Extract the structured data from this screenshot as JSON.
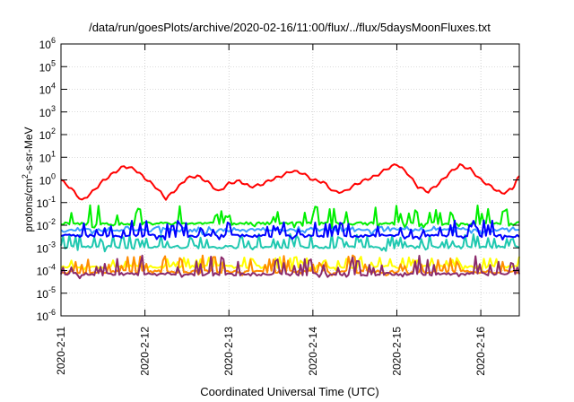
{
  "chart_data": {
    "type": "line",
    "title": "/data/run/goesPlots/archive/2020-02-16/11:00/flux/../flux/5daysMoonFluxes.txt",
    "xlabel": "Coordinated Universal Time (UTC)",
    "ylabel": "protons/cm2-s-sr-MeV",
    "ylabel_parts": {
      "base": "protons/cm",
      "sup": "2",
      "rest": "-s-sr-MeV"
    },
    "y_scale": "log",
    "ylim": [
      1e-06,
      1000000.0
    ],
    "y_ticks": [
      {
        "exp": -6,
        "label_base": "10",
        "label_exp": "-6"
      },
      {
        "exp": -5,
        "label_base": "10",
        "label_exp": "-5"
      },
      {
        "exp": -4,
        "label_base": "10",
        "label_exp": "-4"
      },
      {
        "exp": -3,
        "label_base": "10",
        "label_exp": "-3"
      },
      {
        "exp": -2,
        "label_base": "10",
        "label_exp": "-2"
      },
      {
        "exp": -1,
        "label_base": "10",
        "label_exp": "-1"
      },
      {
        "exp": 0,
        "label_base": "10",
        "label_exp": "0"
      },
      {
        "exp": 1,
        "label_base": "10",
        "label_exp": "1"
      },
      {
        "exp": 2,
        "label_base": "10",
        "label_exp": "2"
      },
      {
        "exp": 3,
        "label_base": "10",
        "label_exp": "3"
      },
      {
        "exp": 4,
        "label_base": "10",
        "label_exp": "4"
      },
      {
        "exp": 5,
        "label_base": "10",
        "label_exp": "5"
      },
      {
        "exp": 6,
        "label_base": "10",
        "label_exp": "6"
      }
    ],
    "xlim": [
      "2020-02-11T00:00",
      "2020-02-16T11:00"
    ],
    "x_ticks": [
      "2020-2-11",
      "2020-2-12",
      "2020-2-13",
      "2020-2-14",
      "2020-2-15",
      "2020-2-16"
    ],
    "grid": true,
    "series": [
      {
        "color": "#ff0000",
        "x": [
          "2020-02-11T00:00",
          "2020-02-11T03:00",
          "2020-02-11T06:00",
          "2020-02-11T09:00",
          "2020-02-11T12:00",
          "2020-02-11T15:00",
          "2020-02-11T18:00",
          "2020-02-11T21:00",
          "2020-02-12T00:00",
          "2020-02-12T03:00",
          "2020-02-12T06:00",
          "2020-02-12T09:00",
          "2020-02-12T12:00",
          "2020-02-12T15:00",
          "2020-02-12T18:00",
          "2020-02-12T21:00",
          "2020-02-13T00:00",
          "2020-02-13T03:00",
          "2020-02-13T06:00",
          "2020-02-13T09:00",
          "2020-02-13T12:00",
          "2020-02-13T15:00",
          "2020-02-13T18:00",
          "2020-02-13T21:00",
          "2020-02-14T00:00",
          "2020-02-14T03:00",
          "2020-02-14T06:00",
          "2020-02-14T09:00",
          "2020-02-14T12:00",
          "2020-02-14T15:00",
          "2020-02-14T18:00",
          "2020-02-14T21:00",
          "2020-02-15T00:00",
          "2020-02-15T03:00",
          "2020-02-15T06:00",
          "2020-02-15T09:00",
          "2020-02-15T12:00",
          "2020-02-15T15:00",
          "2020-02-15T18:00",
          "2020-02-15T21:00",
          "2020-02-16T00:00",
          "2020-02-16T03:00",
          "2020-02-16T06:00",
          "2020-02-16T09:00",
          "2020-02-16T11:00"
        ],
        "y": [
          1.0,
          0.4,
          0.12,
          0.3,
          0.9,
          2.0,
          4.0,
          3.0,
          1.2,
          0.5,
          0.15,
          0.4,
          1.2,
          1.5,
          0.8,
          0.3,
          0.7,
          0.9,
          0.5,
          0.6,
          1.0,
          1.5,
          2.5,
          2.0,
          1.0,
          0.8,
          0.3,
          0.3,
          0.6,
          1.0,
          1.5,
          3.0,
          5.0,
          2.0,
          0.5,
          0.3,
          0.7,
          2.0,
          4.5,
          3.0,
          1.0,
          0.5,
          0.25,
          0.4,
          1.5
        ]
      },
      {
        "color": "#00ee00",
        "x": [
          "2020-02-11T00:00",
          "2020-02-16T11:00"
        ],
        "y": [
          0.012,
          0.012
        ],
        "amp": 3.5,
        "seed": 11
      },
      {
        "color": "#0000ff",
        "x": [
          "2020-02-11T00:00",
          "2020-02-16T11:00"
        ],
        "y": [
          0.0035,
          0.0035
        ],
        "amp": 2.8,
        "seed": 23
      },
      {
        "color": "#3a9cff",
        "x": [
          "2020-02-11T00:00",
          "2020-02-16T11:00"
        ],
        "y": [
          0.006,
          0.006
        ],
        "amp": 1.3,
        "seed": 37
      },
      {
        "color": "#20c8b0",
        "x": [
          "2020-02-11T00:00",
          "2020-02-16T11:00"
        ],
        "y": [
          0.0011,
          0.0011
        ],
        "amp": 2.5,
        "seed": 41
      },
      {
        "color": "#ffff00",
        "x": [
          "2020-02-11T00:00",
          "2020-02-16T11:00"
        ],
        "y": [
          0.00015,
          0.00015
        ],
        "amp": 2.0,
        "seed": 53
      },
      {
        "color": "#ff8c00",
        "x": [
          "2020-02-11T00:00",
          "2020-02-16T11:00"
        ],
        "y": [
          9e-05,
          9e-05
        ],
        "amp": 3.0,
        "seed": 67
      },
      {
        "color": "#8b2a6b",
        "x": [
          "2020-02-11T00:00",
          "2020-02-16T11:00"
        ],
        "y": [
          7e-05,
          7e-05
        ],
        "amp": 3.5,
        "seed": 79
      }
    ]
  }
}
